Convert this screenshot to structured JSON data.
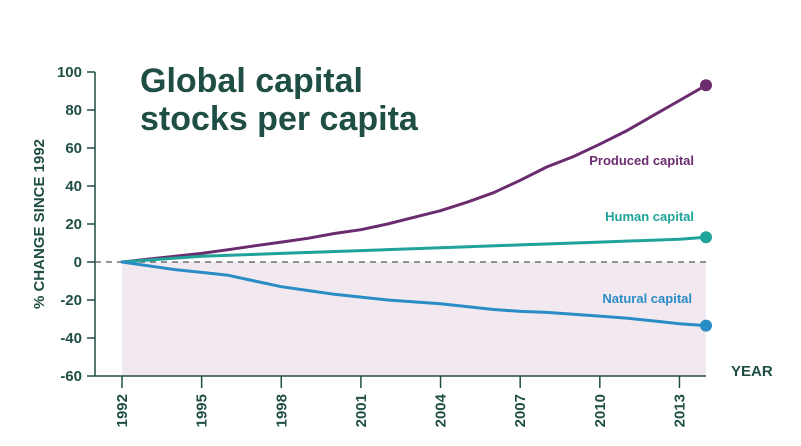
{
  "chart_data": {
    "type": "line",
    "title": "Global capital stocks per capita",
    "title_lines": [
      "Global capital",
      "stocks per capita"
    ],
    "ylabel": "% CHANGE SINCE 1992",
    "xlabel": "YEAR",
    "ylim": [
      -60,
      100
    ],
    "yticks": [
      100,
      80,
      60,
      40,
      20,
      0,
      -20,
      -40,
      -60
    ],
    "xlim": [
      1992,
      2014
    ],
    "xticks": [
      1992,
      1995,
      1998,
      2001,
      2004,
      2007,
      2010,
      2013
    ],
    "shaded_region": {
      "from": -60,
      "to": 0,
      "color": "#f1e8f0"
    },
    "zero_line": {
      "style": "dashed",
      "color": "#555555"
    },
    "series": [
      {
        "name": "Produced capital",
        "color": "#6b2c6f",
        "x": [
          1992,
          1993,
          1994,
          1995,
          1996,
          1997,
          1998,
          1999,
          2000,
          2001,
          2002,
          2003,
          2004,
          2005,
          2006,
          2007,
          2008,
          2009,
          2010,
          2011,
          2012,
          2013,
          2014
        ],
        "values": [
          0,
          1.5,
          3,
          4.5,
          6.5,
          8.5,
          10.5,
          12.5,
          15,
          17,
          20,
          23.5,
          27,
          31.5,
          36.5,
          43,
          50,
          55.5,
          62,
          69,
          77,
          85,
          93
        ]
      },
      {
        "name": "Human capital",
        "color": "#1fa39a",
        "x": [
          1992,
          1995,
          1998,
          2001,
          2004,
          2007,
          2010,
          2013,
          2014
        ],
        "values": [
          0,
          3,
          4.5,
          6,
          7.5,
          9,
          10.5,
          12,
          13
        ]
      },
      {
        "name": "Natural capital",
        "color": "#2a8cc4",
        "x": [
          1992,
          1993,
          1994,
          1995,
          1996,
          1997,
          1998,
          1999,
          2000,
          2001,
          2002,
          2003,
          2004,
          2005,
          2006,
          2007,
          2008,
          2009,
          2010,
          2011,
          2012,
          2013,
          2014
        ],
        "values": [
          0,
          -2,
          -4,
          -5.5,
          -7,
          -10,
          -13,
          -15,
          -17,
          -18.5,
          -20,
          -21,
          -22,
          -23.5,
          -25,
          -26,
          -26.5,
          -27.5,
          -28.5,
          -29.5,
          -31,
          -32.5,
          -33.5
        ]
      }
    ],
    "grid": false,
    "legend": "inline labels"
  }
}
